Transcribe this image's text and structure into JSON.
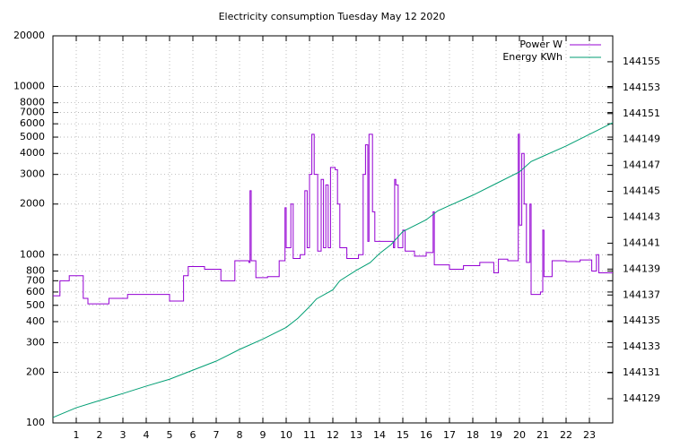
{
  "chart_data": {
    "type": "line",
    "title": "Electricity consumption Tuesday May 12 2020",
    "xlim": [
      0,
      24
    ],
    "xticks": [
      1,
      2,
      3,
      4,
      5,
      6,
      7,
      8,
      9,
      10,
      11,
      12,
      13,
      14,
      15,
      16,
      17,
      18,
      19,
      20,
      21,
      22,
      23
    ],
    "ylim": [
      100,
      20000
    ],
    "log_y": true,
    "yticks": [
      100,
      200,
      300,
      400,
      500,
      600,
      700,
      800,
      1000,
      2000,
      3000,
      4000,
      5000,
      6000,
      7000,
      8000,
      10000,
      20000
    ],
    "y2lim": [
      144127.13,
      144157.0
    ],
    "y2ticks": [
      144129,
      144131,
      144133,
      144135,
      144137,
      144139,
      144141,
      144143,
      144145,
      144147,
      144149,
      144151,
      144153,
      144155
    ],
    "grid": true,
    "legend": "top right",
    "series": [
      {
        "name": "Power W",
        "color": "#9400d3",
        "style": "steps",
        "x": [
          0,
          0.3,
          0.7,
          1.3,
          1.5,
          2.4,
          3.2,
          5,
          5.6,
          5.8,
          6.5,
          7.2,
          7.8,
          8.4,
          8.45,
          8.5,
          8.7,
          9.2,
          9.7,
          9.95,
          10,
          10.2,
          10.3,
          10.6,
          10.8,
          10.9,
          11,
          11.1,
          11.2,
          11.35,
          11.5,
          11.6,
          11.7,
          11.8,
          11.9,
          12.1,
          12.2,
          12.3,
          12.6,
          13.1,
          13.3,
          13.4,
          13.5,
          13.55,
          13.7,
          13.8,
          14.6,
          14.65,
          14.7,
          14.8,
          15,
          15.1,
          15.5,
          16,
          16.3,
          16.35,
          17,
          17.6,
          18.3,
          18.9,
          19.1,
          19.5,
          19.95,
          20,
          20.1,
          20.2,
          20.3,
          20.45,
          20.5,
          20.9,
          21,
          21.05,
          21.4,
          22,
          22.6,
          23.1,
          23.3,
          23.4,
          23.9,
          24
        ],
        "values": [
          570,
          700,
          750,
          550,
          510,
          550,
          580,
          530,
          750,
          850,
          820,
          700,
          920,
          900,
          2400,
          920,
          730,
          740,
          920,
          1900,
          1100,
          2000,
          950,
          1000,
          2400,
          1100,
          3000,
          5200,
          3000,
          1050,
          2800,
          1100,
          2600,
          1100,
          3300,
          3200,
          2000,
          1100,
          950,
          1000,
          3000,
          4500,
          1200,
          5200,
          1800,
          1200,
          1100,
          2800,
          2600,
          1100,
          1400,
          1050,
          980,
          1030,
          1800,
          870,
          820,
          860,
          900,
          780,
          940,
          920,
          5200,
          1500,
          4000,
          2000,
          900,
          2000,
          580,
          600,
          1400,
          740,
          920,
          910,
          930,
          800,
          1000,
          780,
          780,
          780
        ]
      },
      {
        "name": "Energy KWh",
        "color": "#009e73",
        "axis": "y2",
        "x": [
          0,
          1,
          2,
          3,
          4,
          5,
          6,
          7,
          8,
          9,
          10,
          10.5,
          11,
          11.3,
          12,
          12.3,
          13,
          13.6,
          14,
          14.5,
          15,
          16,
          16.5,
          17,
          18,
          19,
          20,
          20.5,
          21,
          22,
          23,
          24
        ],
        "values": [
          144127.55,
          144128.3,
          144128.86,
          144129.4,
          144129.97,
          144130.5,
          144131.2,
          144131.9,
          144132.8,
          144133.6,
          144134.5,
          144135.2,
          144136.1,
          144136.7,
          144137.4,
          144138.1,
          144138.9,
          144139.5,
          144140.2,
          144140.9,
          144141.9,
          144142.8,
          144143.5,
          144143.9,
          144144.7,
          144145.6,
          144146.5,
          144147.3,
          144147.7,
          144148.5,
          144149.4,
          144150.3
        ]
      }
    ]
  }
}
